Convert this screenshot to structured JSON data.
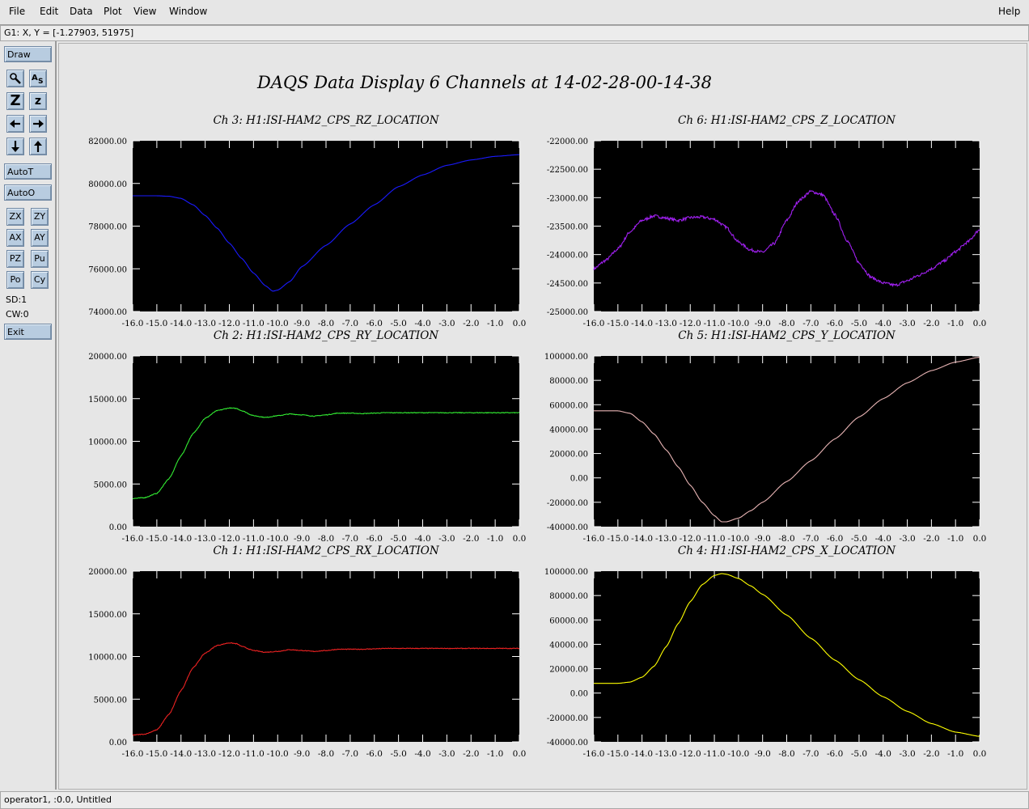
{
  "menu": {
    "file": "File",
    "edit": "Edit",
    "data": "Data",
    "plot": "Plot",
    "view": "View",
    "window": "Window",
    "help": "Help"
  },
  "coord_readout": "G1: X, Y = [-1.27903, 51975]",
  "toolbar": {
    "draw": "Draw",
    "zoom_tool_icon": "magnifier-icon",
    "label_tool_icon": "text-label-icon",
    "zoom_full": "Z",
    "zoom_small": "z",
    "arrows": [
      "left-arrow-icon",
      "right-arrow-icon",
      "down-arrow-icon",
      "up-arrow-icon"
    ],
    "autot": "AutoT",
    "autoo": "AutoO",
    "grid": [
      "ZX",
      "ZY",
      "AX",
      "AY",
      "PZ",
      "Pu",
      "Po",
      "Cy"
    ],
    "sd": "SD:1",
    "cw": "CW:0",
    "exit": "Exit"
  },
  "status": "operator1, :0.0, Untitled",
  "plot_title": "DAQS Data Display 6 Channels at 14-02-28-00-14-38",
  "colors": {
    "plot_bg": "#000000",
    "axes": "#ffffff",
    "panel": "#e6e6e6",
    "button": "#b8cce0"
  },
  "chart_data": [
    {
      "type": "line",
      "title": "Ch 3:  H1:ISI-HAM2_CPS_RZ_LOCATION",
      "ylim": [
        74000,
        82000
      ],
      "yticks": [
        "74000.00",
        "76000.00",
        "78000.00",
        "80000.00",
        "82000.00"
      ],
      "xlim": [
        -16,
        0
      ],
      "xticks": [
        "-16.0",
        "-15.0",
        "-14.0",
        "-13.0",
        "-12.0",
        "-11.0",
        "-10.0",
        "-9.0",
        "-8.0",
        "-7.0",
        "-6.0",
        "-5.0",
        "-4.0",
        "-3.0",
        "-2.0",
        "-1.0",
        "0.0"
      ],
      "series": [
        {
          "color": "#1a1aff",
          "noise": 0,
          "x": [
            -16,
            -15,
            -14.5,
            -14,
            -13.5,
            -13,
            -12.5,
            -12,
            -11.5,
            -11,
            -10.5,
            -10.2,
            -10,
            -9.5,
            -9,
            -8,
            -7,
            -6,
            -5,
            -4,
            -3,
            -2,
            -1,
            0
          ],
          "y": [
            79420,
            79420,
            79400,
            79300,
            79000,
            78500,
            77900,
            77200,
            76500,
            75800,
            75200,
            74950,
            75000,
            75400,
            76100,
            77100,
            78100,
            79000,
            79850,
            80400,
            80850,
            81100,
            81270,
            81350
          ]
        }
      ]
    },
    {
      "type": "line",
      "title": "Ch 6:  H1:ISI-HAM2_CPS_Z_LOCATION",
      "ylim": [
        -25000,
        -22000
      ],
      "yticks": [
        "-25000.00",
        "-24500.00",
        "-24000.00",
        "-23500.00",
        "-23000.00",
        "-22500.00",
        "-22000.00"
      ],
      "xlim": [
        -16,
        0
      ],
      "xticks": [
        "-16.0",
        "-15.0",
        "-14.0",
        "-13.0",
        "-12.0",
        "-11.0",
        "-10.0",
        "-9.0",
        "-8.0",
        "-7.0",
        "-6.0",
        "-5.0",
        "-4.0",
        "-3.0",
        "-2.0",
        "-1.0",
        "0.0"
      ],
      "series": [
        {
          "color": "#a020f0",
          "noise": 25,
          "x": [
            -16,
            -15.5,
            -15,
            -14.5,
            -14,
            -13.5,
            -13,
            -12.5,
            -12,
            -11.5,
            -11,
            -10.5,
            -10,
            -9.5,
            -9,
            -8.5,
            -8,
            -7.5,
            -7,
            -6.5,
            -6,
            -5.5,
            -5,
            -4.5,
            -4,
            -3.5,
            -3,
            -2.5,
            -2,
            -1.5,
            -1,
            -0.5,
            0
          ],
          "y": [
            -24250,
            -24100,
            -23900,
            -23600,
            -23400,
            -23320,
            -23360,
            -23400,
            -23350,
            -23340,
            -23380,
            -23520,
            -23780,
            -23920,
            -23960,
            -23800,
            -23400,
            -23050,
            -22890,
            -22950,
            -23300,
            -23750,
            -24150,
            -24400,
            -24500,
            -24540,
            -24460,
            -24360,
            -24250,
            -24120,
            -23950,
            -23780,
            -23560
          ]
        }
      ]
    },
    {
      "type": "line",
      "title": "Ch 2:  H1:ISI-HAM2_CPS_RY_LOCATION",
      "ylim": [
        0,
        20000
      ],
      "yticks": [
        "0.00",
        "5000.00",
        "10000.00",
        "15000.00",
        "20000.00"
      ],
      "xlim": [
        -16,
        0
      ],
      "xticks": [
        "-16.0",
        "-15.0",
        "-14.0",
        "-13.0",
        "-12.0",
        "-11.0",
        "-10.0",
        "-9.0",
        "-8.0",
        "-7.0",
        "-6.0",
        "-5.0",
        "-4.0",
        "-3.0",
        "-2.0",
        "-1.0",
        "0.0"
      ],
      "series": [
        {
          "color": "#33ee33",
          "noise": 40,
          "x": [
            -16,
            -15.5,
            -15,
            -14.5,
            -14,
            -13.5,
            -13,
            -12.5,
            -12,
            -11.7,
            -11.5,
            -11,
            -10.5,
            -10,
            -9.5,
            -9,
            -8.5,
            -8,
            -7.5,
            -7,
            -6.5,
            -6,
            -5.5,
            -5,
            -4,
            -3,
            -2,
            -1,
            0
          ],
          "y": [
            3300,
            3400,
            3900,
            5600,
            8300,
            10900,
            12700,
            13600,
            13900,
            13850,
            13600,
            13000,
            12800,
            13000,
            13200,
            13100,
            12950,
            13100,
            13300,
            13300,
            13250,
            13300,
            13350,
            13350,
            13350,
            13350,
            13350,
            13350,
            13350
          ]
        }
      ]
    },
    {
      "type": "line",
      "title": "Ch 5:  H1:ISI-HAM2_CPS_Y_LOCATION",
      "ylim": [
        -40000,
        100000
      ],
      "yticks": [
        "-40000.00",
        "-20000.00",
        "0.00",
        "20000.00",
        "40000.00",
        "60000.00",
        "80000.00",
        "100000.00"
      ],
      "xlim": [
        -16,
        0
      ],
      "xticks": [
        "-16.0",
        "-15.0",
        "-14.0",
        "-13.0",
        "-12.0",
        "-11.0",
        "-10.0",
        "-9.0",
        "-8.0",
        "-7.0",
        "-6.0",
        "-5.0",
        "-4.0",
        "-3.0",
        "-2.0",
        "-1.0",
        "0.0"
      ],
      "series": [
        {
          "color": "#e8b4b4",
          "noise": 0,
          "x": [
            -16,
            -15,
            -14.5,
            -14,
            -13.5,
            -13,
            -12.5,
            -12,
            -11.5,
            -11,
            -10.7,
            -10.5,
            -10,
            -9.5,
            -9,
            -8,
            -7,
            -6,
            -5,
            -4,
            -3,
            -2,
            -1,
            0
          ],
          "y": [
            55000,
            55000,
            53000,
            46000,
            36000,
            23000,
            9000,
            -6000,
            -20000,
            -31000,
            -36000,
            -36000,
            -33000,
            -27000,
            -20000,
            -3000,
            14000,
            32000,
            50000,
            65000,
            78000,
            88000,
            95000,
            99000
          ]
        }
      ]
    },
    {
      "type": "line",
      "title": "Ch 1:  H1:ISI-HAM2_CPS_RX_LOCATION",
      "ylim": [
        0,
        20000
      ],
      "yticks": [
        "0.00",
        "5000.00",
        "10000.00",
        "15000.00",
        "20000.00"
      ],
      "xlim": [
        -16,
        0
      ],
      "xticks": [
        "-16.0",
        "-15.0",
        "-14.0",
        "-13.0",
        "-12.0",
        "-11.0",
        "-10.0",
        "-9.0",
        "-8.0",
        "-7.0",
        "-6.0",
        "-5.0",
        "-4.0",
        "-3.0",
        "-2.0",
        "-1.0",
        "0.0"
      ],
      "series": [
        {
          "color": "#ee2222",
          "noise": 40,
          "x": [
            -16,
            -15.5,
            -15,
            -14.5,
            -14,
            -13.5,
            -13,
            -12.5,
            -12,
            -11.7,
            -11.5,
            -11,
            -10.5,
            -10,
            -9.5,
            -9,
            -8.5,
            -8,
            -7.5,
            -7,
            -6.5,
            -6,
            -5.5,
            -5,
            -4,
            -3,
            -2,
            -1,
            0
          ],
          "y": [
            800,
            900,
            1400,
            3200,
            6000,
            8700,
            10400,
            11300,
            11600,
            11500,
            11200,
            10700,
            10500,
            10600,
            10800,
            10700,
            10600,
            10700,
            10850,
            10850,
            10850,
            10900,
            10950,
            10950,
            10950,
            10950,
            10950,
            10950,
            10950
          ]
        }
      ]
    },
    {
      "type": "line",
      "title": "Ch 4:  H1:ISI-HAM2_CPS_X_LOCATION",
      "ylim": [
        -40000,
        100000
      ],
      "yticks": [
        "-40000.00",
        "-20000.00",
        "0.00",
        "20000.00",
        "40000.00",
        "60000.00",
        "80000.00",
        "100000.00"
      ],
      "xlim": [
        -16,
        0
      ],
      "xticks": [
        "-16.0",
        "-15.0",
        "-14.0",
        "-13.0",
        "-12.0",
        "-11.0",
        "-10.0",
        "-9.0",
        "-8.0",
        "-7.0",
        "-6.0",
        "-5.0",
        "-4.0",
        "-3.0",
        "-2.0",
        "-1.0",
        "0.0"
      ],
      "series": [
        {
          "color": "#ffff00",
          "noise": 0,
          "x": [
            -16,
            -15,
            -14.5,
            -14,
            -13.5,
            -13,
            -12.5,
            -12,
            -11.5,
            -11,
            -10.7,
            -10.5,
            -10,
            -9.5,
            -9,
            -8,
            -7,
            -6,
            -5,
            -4,
            -3,
            -2,
            -1,
            0
          ],
          "y": [
            8000,
            8000,
            9000,
            13000,
            22000,
            38000,
            57000,
            75000,
            89000,
            96500,
            98000,
            97500,
            94000,
            88000,
            81000,
            64000,
            45000,
            27000,
            11000,
            -3000,
            -15000,
            -25000,
            -32000,
            -35500
          ]
        }
      ]
    }
  ]
}
